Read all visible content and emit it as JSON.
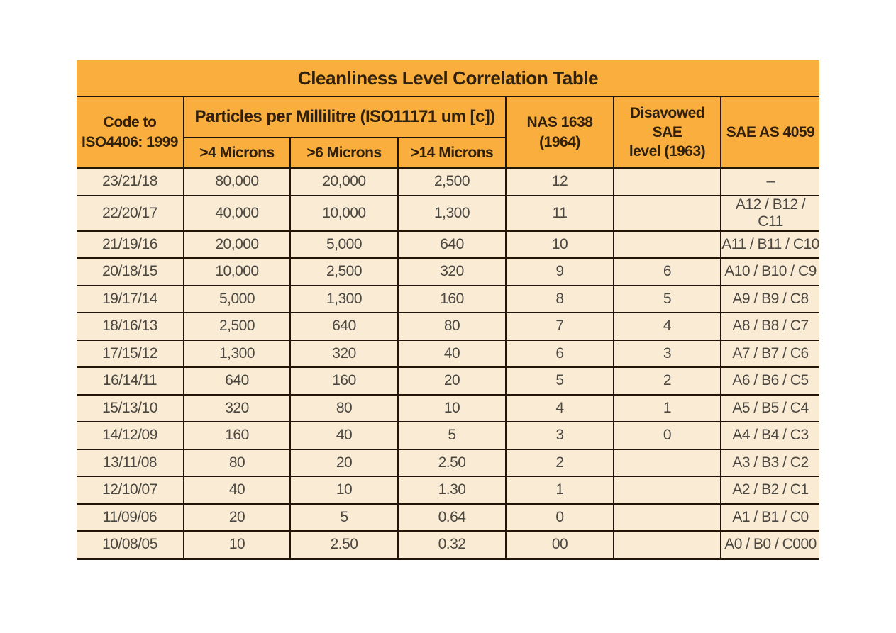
{
  "title": "Cleanliness Level Correlation Table",
  "colors": {
    "page_background": "#FFFFFF",
    "header_background": "#F9AE3D",
    "row_background": "#FAECD4",
    "border": "#211409",
    "header_text": "#30200C",
    "data_text": "#4B4742"
  },
  "header": {
    "code": "Code to\nISO4406: 1999",
    "particles_group": "Particles per Millilitre (ISO11171 um [c])",
    "micron4": ">4 Microns",
    "micron6": ">6 Microns",
    "micron14": ">14 Microns",
    "nas": "NAS 1638\n(1964)",
    "disavowed": "Disavowed SAE\nlevel (1963)",
    "sae": "SAE AS 4059"
  },
  "row_keys": [
    "code",
    "m4",
    "m6",
    "m14",
    "nas",
    "disavowed_sae",
    "sae_as"
  ],
  "rows": [
    {
      "code": "23/21/18",
      "m4": "80,000",
      "m6": "20,000",
      "m14": "2,500",
      "nas": "12",
      "disavowed_sae": "",
      "sae_as": "–"
    },
    {
      "code": "22/20/17",
      "m4": "40,000",
      "m6": "10,000",
      "m14": "1,300",
      "nas": "11",
      "disavowed_sae": "",
      "sae_as": "A12 / B12 / C11"
    },
    {
      "code": "21/19/16",
      "m4": "20,000",
      "m6": "5,000",
      "m14": "640",
      "nas": "10",
      "disavowed_sae": "",
      "sae_as": "A11 / B11 / C10"
    },
    {
      "code": "20/18/15",
      "m4": "10,000",
      "m6": "2,500",
      "m14": "320",
      "nas": "9",
      "disavowed_sae": "6",
      "sae_as": "A10 / B10 / C9"
    },
    {
      "code": "19/17/14",
      "m4": "5,000",
      "m6": "1,300",
      "m14": "160",
      "nas": "8",
      "disavowed_sae": "5",
      "sae_as": "A9 / B9 / C8"
    },
    {
      "code": "18/16/13",
      "m4": "2,500",
      "m6": "640",
      "m14": "80",
      "nas": "7",
      "disavowed_sae": "4",
      "sae_as": "A8 / B8 / C7"
    },
    {
      "code": "17/15/12",
      "m4": "1,300",
      "m6": "320",
      "m14": "40",
      "nas": "6",
      "disavowed_sae": "3",
      "sae_as": "A7 / B7 / C6"
    },
    {
      "code": "16/14/11",
      "m4": "640",
      "m6": "160",
      "m14": "20",
      "nas": "5",
      "disavowed_sae": "2",
      "sae_as": "A6 / B6 / C5"
    },
    {
      "code": "15/13/10",
      "m4": "320",
      "m6": "80",
      "m14": "10",
      "nas": "4",
      "disavowed_sae": "1",
      "sae_as": "A5 / B5 / C4"
    },
    {
      "code": "14/12/09",
      "m4": "160",
      "m6": "40",
      "m14": "5",
      "nas": "3",
      "disavowed_sae": "0",
      "sae_as": "A4 / B4 / C3"
    },
    {
      "code": "13/11/08",
      "m4": "80",
      "m6": "20",
      "m14": "2.50",
      "nas": "2",
      "disavowed_sae": "",
      "sae_as": "A3 / B3 / C2"
    },
    {
      "code": "12/10/07",
      "m4": "40",
      "m6": "10",
      "m14": "1.30",
      "nas": "1",
      "disavowed_sae": "",
      "sae_as": "A2 / B2 / C1"
    },
    {
      "code": "11/09/06",
      "m4": "20",
      "m6": "5",
      "m14": "0.64",
      "nas": "0",
      "disavowed_sae": "",
      "sae_as": "A1 / B1 / C0"
    },
    {
      "code": "10/08/05",
      "m4": "10",
      "m6": "2.50",
      "m14": "0.32",
      "nas": "00",
      "disavowed_sae": "",
      "sae_as": "A0 / B0 / C000"
    }
  ]
}
